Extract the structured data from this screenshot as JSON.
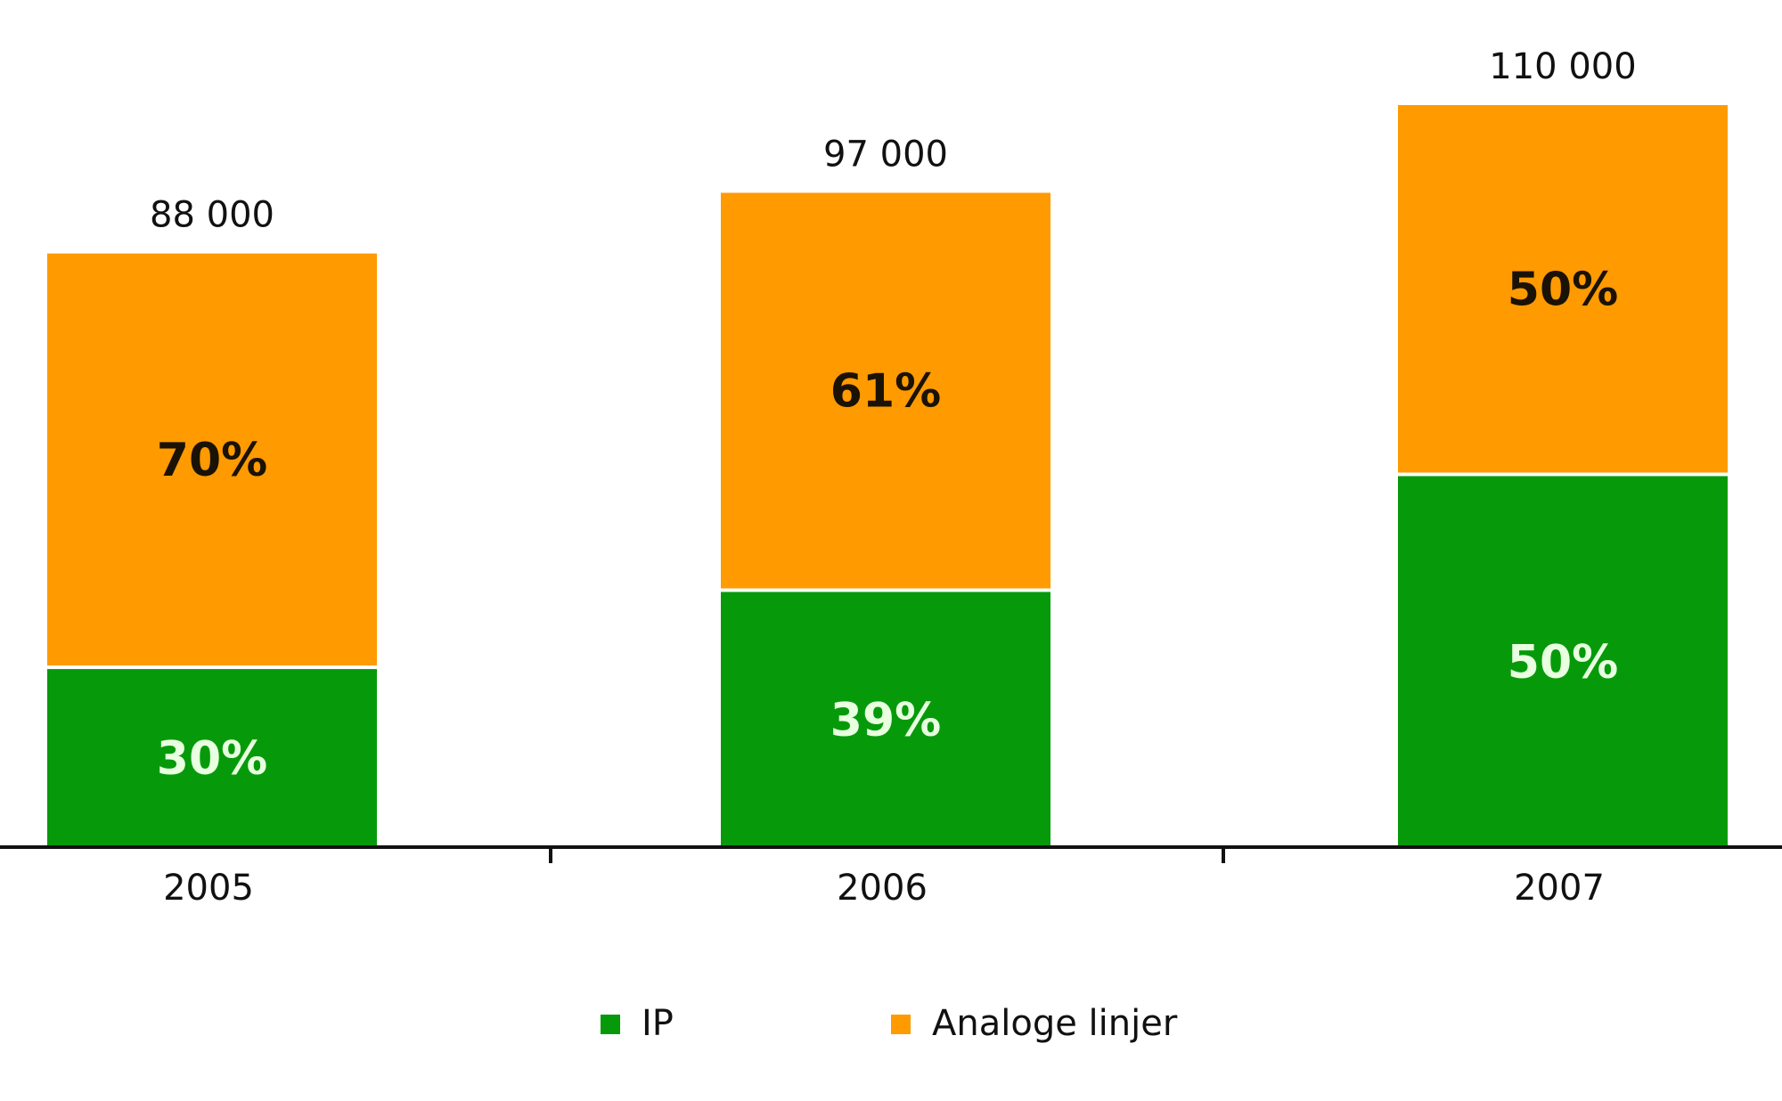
{
  "chart_data": {
    "type": "bar",
    "stacked": true,
    "categories": [
      "2005",
      "2006",
      "2007"
    ],
    "totals": [
      88000,
      97000,
      110000
    ],
    "total_labels": [
      "88 000",
      "97 000",
      "110 000"
    ],
    "series": [
      {
        "name": "IP",
        "color": "#069a0b",
        "label_color": "#e8ffe0",
        "values_pct": [
          30,
          39,
          50
        ],
        "labels": [
          "30%",
          "39%",
          "50%"
        ]
      },
      {
        "name": "Analoge linjer",
        "color": "#ff9a00",
        "label_color": "#1a1205",
        "values_pct": [
          70,
          61,
          50
        ],
        "labels": [
          "70%",
          "61%",
          "50%"
        ]
      }
    ],
    "ylim": [
      0,
      110000
    ],
    "grid": false,
    "legend_position": "bottom"
  }
}
